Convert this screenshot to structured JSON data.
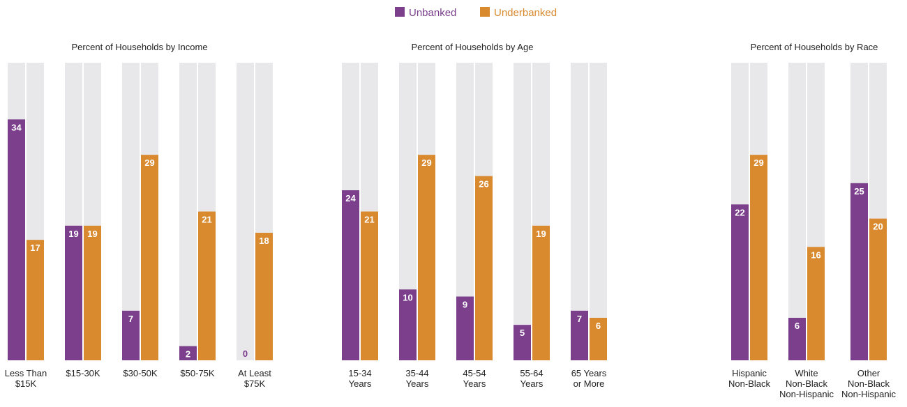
{
  "legend": [
    {
      "name": "Unbanked",
      "color": "#7b3f8c"
    },
    {
      "name": "Underbanked",
      "color": "#d98a2f"
    }
  ],
  "colors": {
    "track": "#e8e8ea",
    "unbanked": "#7b3f8c",
    "underbanked": "#d98a2f",
    "zero_label": "#7b3f8c"
  },
  "chart_data": [
    {
      "type": "bar",
      "title": "Percent of Households by Income",
      "categories": [
        [
          "Less Than",
          "$15K"
        ],
        [
          "$15-30K"
        ],
        [
          "$30-50K"
        ],
        [
          "$50-75K"
        ],
        [
          "At Least",
          "$75K"
        ]
      ],
      "series": [
        {
          "name": "Unbanked",
          "values": [
            34,
            19,
            7,
            2,
            0
          ]
        },
        {
          "name": "Underbanked",
          "values": [
            17,
            19,
            29,
            21,
            18
          ]
        }
      ],
      "ylim": [
        0,
        42
      ],
      "xlabel": "",
      "ylabel": "",
      "grid": false,
      "legend": "top-center"
    },
    {
      "type": "bar",
      "title": "Percent of Households by Age",
      "categories": [
        [
          "15-34",
          "Years"
        ],
        [
          "35-44",
          "Years"
        ],
        [
          "45-54",
          "Years"
        ],
        [
          "55-64",
          "Years"
        ],
        [
          "65 Years",
          "or More"
        ]
      ],
      "series": [
        {
          "name": "Unbanked",
          "values": [
            24,
            10,
            9,
            5,
            7
          ]
        },
        {
          "name": "Underbanked",
          "values": [
            21,
            29,
            26,
            19,
            6
          ]
        }
      ],
      "ylim": [
        0,
        42
      ],
      "xlabel": "",
      "ylabel": "",
      "grid": false,
      "legend": "top-center"
    },
    {
      "type": "bar",
      "title": "Percent of Households by Race",
      "categories": [
        [
          "Hispanic",
          "Non-Black"
        ],
        [
          "White",
          "Non-Black",
          "Non-Hispanic"
        ],
        [
          "Other",
          "Non-Black",
          "Non-Hispanic"
        ]
      ],
      "series": [
        {
          "name": "Unbanked",
          "values": [
            22,
            6,
            25
          ]
        },
        {
          "name": "Underbanked",
          "values": [
            29,
            16,
            20
          ]
        }
      ],
      "ylim": [
        0,
        42
      ],
      "xlabel": "",
      "ylabel": "",
      "grid": false,
      "legend": "top-center"
    }
  ]
}
